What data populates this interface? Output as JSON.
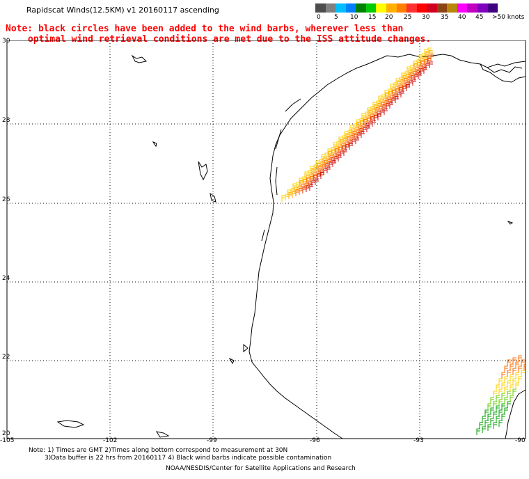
{
  "header": {
    "title": "Rapidscat Winds(12.5KM) v1 20160117 ascending",
    "note_line1": "Note: black circles have been added to the wind barbs, wherever less than",
    "note_line2": "optimal wind retrieval conditions are met due to the ISS attitude changes."
  },
  "colorbar": {
    "labels": [
      "0",
      "5",
      "10",
      "15",
      "20",
      "25",
      "30",
      "35",
      "40",
      "45",
      ">50 knots"
    ],
    "colors": [
      "#4d4d4d",
      "#808080",
      "#00bfff",
      "#0080ff",
      "#008000",
      "#00cc00",
      "#ffff00",
      "#ffb000",
      "#ff7f00",
      "#ff3030",
      "#ff0000",
      "#d00020",
      "#8b4513",
      "#b8860b",
      "#ff00ff",
      "#c000c0",
      "#8000c0",
      "#400080"
    ]
  },
  "map": {
    "lat_labels": [
      "30",
      "28",
      "26",
      "24",
      "22",
      "20"
    ],
    "lon_labels": [
      "-105",
      "-102",
      "-99",
      "-96",
      "-93",
      "-90"
    ],
    "barb_colors": [
      "#ffd000",
      "#ffa500",
      "#ff6a00",
      "#e03000",
      "#d01010"
    ],
    "lower_right_barb_colors": [
      "#ff6a00",
      "#ffd000",
      "#66cc00",
      "#00a000"
    ]
  },
  "footer": {
    "line1": "Note: 1) Times are GMT 2)Times along bottom correspond to measurement at 30N",
    "line2": "3)Data buffer is 22 hrs from 20160117 4) Black wind barbs indicate possible contamination",
    "line3": "NOAA/NESDIS/Center for Satellite Applications and Research"
  }
}
